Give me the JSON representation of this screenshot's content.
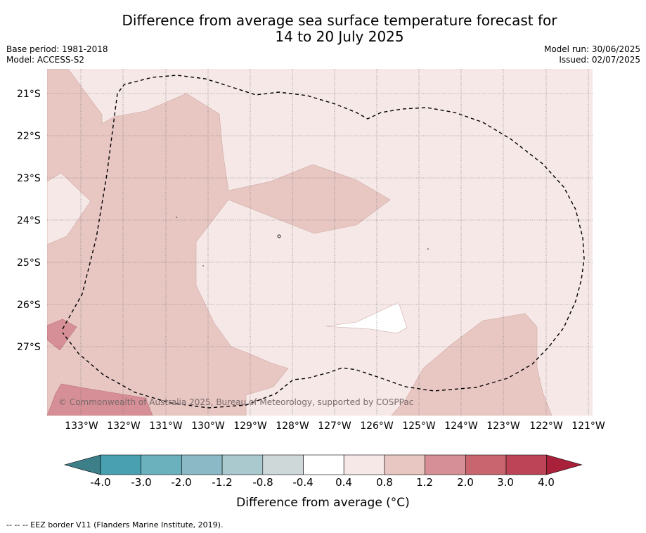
{
  "header": {
    "title_line1": "Difference from average sea surface temperature forecast for",
    "title_line2": "14 to 20 July 2025",
    "base_period": "Base period: 1981-2018",
    "model": "Model: ACCESS-S2",
    "model_run": "Model run: 30/06/2025",
    "issued": "Issued: 02/07/2025"
  },
  "map": {
    "latitude_labels": [
      "21°S",
      "22°S",
      "23°S",
      "24°S",
      "25°S",
      "26°S",
      "27°S"
    ],
    "longitude_labels": [
      "133°W",
      "132°W",
      "131°W",
      "130°W",
      "129°W",
      "128°W",
      "127°W",
      "126°W",
      "125°W",
      "124°W",
      "123°W",
      "122°W",
      "121°W"
    ],
    "copyright": "© Commonwealth of Australia 2025, Bureau of Meteorology, supported by COSPPac",
    "colors": {
      "band_0_4_0_8": "#f5e8e7",
      "band_0_8_1_2": "#e8c7c3",
      "band_1_2_2_0": "#d68f96",
      "band_neutral": "#ffffff"
    }
  },
  "colorbar": {
    "ticks": [
      "-4.0",
      "-3.0",
      "-2.0",
      "-1.2",
      "-0.8",
      "-0.4",
      "0.4",
      "0.8",
      "1.2",
      "2.0",
      "3.0",
      "4.0"
    ],
    "colors": [
      "#3d7f89",
      "#48a0b0",
      "#6bb0bd",
      "#8bbac6",
      "#a9c9ce",
      "#cfd8d9",
      "#ffffff",
      "#f5e8e7",
      "#e8c7c3",
      "#d68f96",
      "#c8656e",
      "#bd4457",
      "#a8203a"
    ],
    "label": "Difference from average (°C)"
  },
  "footer": {
    "eez_note": "--  --  -- EEZ border V11 (Flanders Marine Institute, 2019)."
  }
}
